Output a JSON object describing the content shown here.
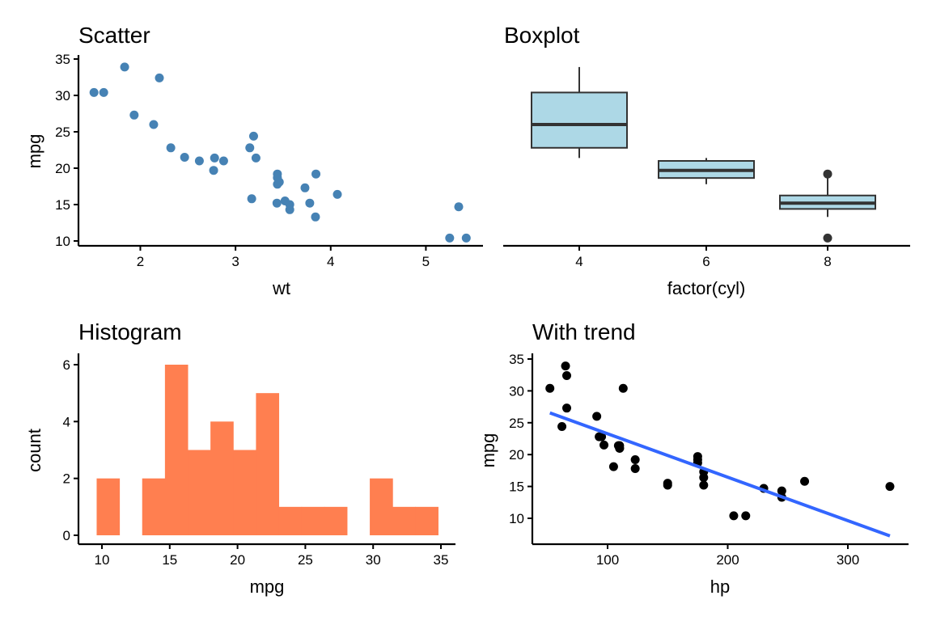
{
  "chart_data": [
    {
      "type": "scatter",
      "title": "Scatter",
      "xlabel": "wt",
      "ylabel": "mpg",
      "xlim": [
        1.35,
        5.6
      ],
      "ylim": [
        9.2,
        35
      ],
      "xticks": [
        2,
        3,
        4,
        5
      ],
      "yticks": [
        10,
        15,
        20,
        25,
        30,
        35
      ],
      "grid": false,
      "point_color": "#4682B4",
      "x": [
        2.62,
        2.875,
        2.32,
        3.215,
        3.44,
        3.46,
        3.57,
        3.19,
        3.15,
        3.44,
        3.44,
        4.07,
        3.73,
        3.78,
        5.25,
        5.424,
        5.345,
        2.2,
        1.615,
        1.835,
        2.465,
        3.52,
        3.435,
        3.84,
        3.845,
        1.935,
        2.14,
        1.513,
        3.17,
        2.77,
        3.57,
        2.78
      ],
      "y": [
        21.0,
        21.0,
        22.8,
        21.4,
        18.7,
        18.1,
        14.3,
        24.4,
        22.8,
        19.2,
        17.8,
        16.4,
        17.3,
        15.2,
        10.4,
        10.4,
        14.7,
        32.4,
        30.4,
        33.9,
        21.5,
        15.5,
        15.2,
        13.3,
        19.2,
        27.3,
        26.0,
        30.4,
        15.8,
        19.7,
        15.0,
        21.4
      ]
    },
    {
      "type": "box",
      "title": "Boxplot",
      "xlabel": "factor(cyl)",
      "ylabel": "",
      "ylim": [
        9.2,
        35
      ],
      "categories": [
        "4",
        "6",
        "8"
      ],
      "fill_color": "#ADD8E6",
      "stroke_color": "#333333",
      "boxes": [
        {
          "category": "4",
          "whisker_low": 21.4,
          "q1": 22.8,
          "median": 26.0,
          "q3": 30.4,
          "whisker_high": 33.9,
          "outliers": []
        },
        {
          "category": "6",
          "whisker_low": 17.8,
          "q1": 18.65,
          "median": 19.7,
          "q3": 21.0,
          "whisker_high": 21.4,
          "outliers": []
        },
        {
          "category": "8",
          "whisker_low": 13.3,
          "q1": 14.4,
          "median": 15.2,
          "q3": 16.25,
          "whisker_high": 18.7,
          "outliers": [
            19.2,
            10.4
          ]
        }
      ]
    },
    {
      "type": "bar",
      "subtype": "histogram",
      "title": "Histogram",
      "xlabel": "mpg",
      "ylabel": "count",
      "xlim": [
        8.5,
        36.0
      ],
      "ylim": [
        -0.3,
        6.3
      ],
      "xticks": [
        10,
        15,
        20,
        25,
        30,
        35
      ],
      "yticks": [
        0,
        2,
        4,
        6
      ],
      "bar_color": "#FF7F50",
      "bin_start": 9.6107,
      "bin_width": 1.6786,
      "counts": [
        2,
        0,
        2,
        6,
        3,
        4,
        3,
        5,
        1,
        1,
        1,
        0,
        2,
        1,
        1
      ]
    },
    {
      "type": "scatter",
      "title": "With trend",
      "xlabel": "hp",
      "ylabel": "mpg",
      "xlim": [
        37,
        350
      ],
      "ylim": [
        6,
        35.4
      ],
      "xticks": [
        100,
        200,
        300
      ],
      "yticks": [
        10,
        15,
        20,
        25,
        30,
        35
      ],
      "grid": false,
      "point_color": "#000000",
      "trend_color": "#3366FF",
      "trend": {
        "x": [
          52,
          335
        ],
        "y": [
          26.55,
          7.24
        ]
      },
      "x": [
        110,
        110,
        93,
        110,
        175,
        105,
        245,
        62,
        95,
        123,
        123,
        180,
        180,
        180,
        205,
        215,
        230,
        66,
        52,
        65,
        97,
        150,
        150,
        245,
        175,
        66,
        91,
        113,
        264,
        175,
        335,
        109
      ],
      "y": [
        21.0,
        21.0,
        22.8,
        21.4,
        18.7,
        18.1,
        14.3,
        24.4,
        22.8,
        19.2,
        17.8,
        16.4,
        17.3,
        15.2,
        10.4,
        10.4,
        14.7,
        32.4,
        30.4,
        33.9,
        21.5,
        15.5,
        15.2,
        13.3,
        19.2,
        27.3,
        26.0,
        30.4,
        15.8,
        19.7,
        15.0,
        21.4
      ]
    }
  ]
}
